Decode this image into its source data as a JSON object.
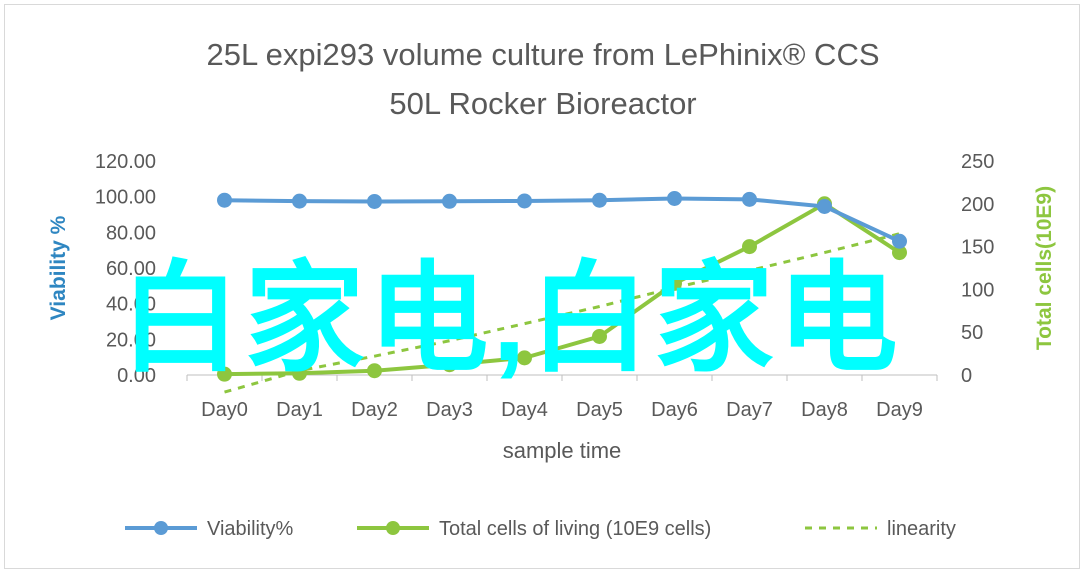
{
  "chart_data": {
    "type": "line",
    "title": "25L  expi293 volume culture  from LePhinix® CCS 50L Rocker Bioreactor",
    "title_lines": [
      "25L  expi293 volume culture  from LePhinix® CCS",
      "50L Rocker Bioreactor"
    ],
    "xlabel": "sample  time",
    "ylabel_left": "Viability %",
    "ylabel_right": "Total cells(10E9)",
    "categories": [
      "Day0",
      "Day1",
      "Day2",
      "Day3",
      "Day4",
      "Day5",
      "Day6",
      "Day7",
      "Day8",
      "Day9"
    ],
    "y_left": {
      "min": 0,
      "max": 120,
      "ticks": [
        "0.00",
        "20.00",
        "40.00",
        "60.00",
        "80.00",
        "100.00",
        "120.00"
      ]
    },
    "y_right": {
      "min": 0,
      "max": 250,
      "ticks": [
        "0",
        "50",
        "100",
        "150",
        "200",
        "250"
      ]
    },
    "series": [
      {
        "name": "Viability%",
        "axis": "left",
        "color": "#5b9bd5",
        "style": "solid-markers",
        "values": [
          98.0,
          97.5,
          97.3,
          97.4,
          97.6,
          98.0,
          99.0,
          98.5,
          94.5,
          75.0
        ]
      },
      {
        "name": "Total cells of living (10E9 cells)",
        "axis": "right",
        "color": "#8dc63f",
        "style": "solid-markers",
        "values": [
          1,
          2,
          5,
          12,
          20,
          45,
          107,
          150,
          200,
          143
        ]
      },
      {
        "name": "linearity",
        "axis": "right",
        "color": "#8dc63f",
        "style": "dashed",
        "values": [
          -20,
          5,
          22,
          40,
          60,
          80,
          102,
          122,
          143,
          165
        ]
      }
    ],
    "legend_position": "bottom",
    "grid": false
  },
  "watermark": {
    "text": "白家电,白家电",
    "color": "#00ffff"
  }
}
